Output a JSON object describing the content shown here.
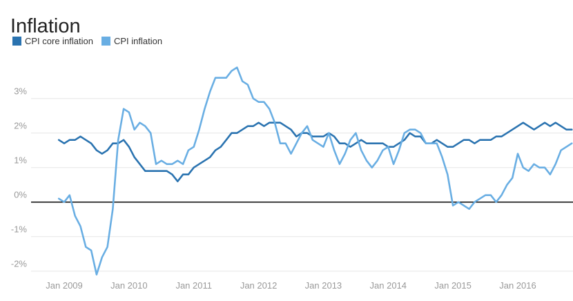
{
  "chart_data": {
    "type": "line",
    "title": "Inflation",
    "x_unit": "month",
    "x_start_month": "Dec 2008",
    "x_end_month": "Nov 2016",
    "x_tick_labels": [
      "Jan 2009",
      "Jan 2010",
      "Jan 2011",
      "Jan 2012",
      "Jan 2013",
      "Jan 2014",
      "Jan 2015",
      "Jan 2016"
    ],
    "y_ticks": [
      {
        "label": "3%",
        "value": 3
      },
      {
        "label": "2%",
        "value": 2
      },
      {
        "label": "1%",
        "value": 1
      },
      {
        "label": "0%",
        "value": 0
      },
      {
        "label": "-1%",
        "value": -1
      },
      {
        "label": "-2%",
        "value": -2
      }
    ],
    "ylim": [
      -2.25,
      3.95
    ],
    "grid": "horizontal-only",
    "gridline_color": "#e6e6e6",
    "zero_line_color": "#000000",
    "tick_label_color": "#999999",
    "legend_position": "top-left",
    "series": [
      {
        "name": "CPI core inflation",
        "color": "#2a73b0",
        "values": [
          1.8,
          1.7,
          1.8,
          1.8,
          1.9,
          1.8,
          1.7,
          1.5,
          1.4,
          1.5,
          1.7,
          1.7,
          1.8,
          1.6,
          1.3,
          1.1,
          0.9,
          0.9,
          0.9,
          0.9,
          0.9,
          0.8,
          0.6,
          0.8,
          0.8,
          1.0,
          1.1,
          1.2,
          1.3,
          1.5,
          1.6,
          1.8,
          2.0,
          2.0,
          2.1,
          2.2,
          2.2,
          2.3,
          2.2,
          2.3,
          2.3,
          2.3,
          2.2,
          2.1,
          1.9,
          2.0,
          2.0,
          1.9,
          1.9,
          1.9,
          2.0,
          1.9,
          1.7,
          1.7,
          1.6,
          1.7,
          1.8,
          1.7,
          1.7,
          1.7,
          1.7,
          1.6,
          1.6,
          1.7,
          1.8,
          2.0,
          1.9,
          1.9,
          1.7,
          1.7,
          1.8,
          1.7,
          1.6,
          1.6,
          1.7,
          1.8,
          1.8,
          1.7,
          1.8,
          1.8,
          1.8,
          1.9,
          1.9,
          2.0,
          2.1,
          2.2,
          2.3,
          2.2,
          2.1,
          2.2,
          2.3,
          2.2,
          2.3,
          2.2,
          2.1,
          2.1
        ]
      },
      {
        "name": "CPI inflation",
        "color": "#69aee3",
        "values": [
          0.1,
          0.0,
          0.2,
          -0.4,
          -0.7,
          -1.3,
          -1.4,
          -2.1,
          -1.6,
          -1.3,
          -0.2,
          1.8,
          2.7,
          2.6,
          2.1,
          2.3,
          2.2,
          2.0,
          1.1,
          1.2,
          1.1,
          1.1,
          1.2,
          1.1,
          1.5,
          1.6,
          2.1,
          2.7,
          3.2,
          3.6,
          3.6,
          3.6,
          3.8,
          3.9,
          3.5,
          3.4,
          3.0,
          2.9,
          2.9,
          2.7,
          2.3,
          1.7,
          1.7,
          1.4,
          1.7,
          2.0,
          2.2,
          1.8,
          1.7,
          1.6,
          2.0,
          1.5,
          1.1,
          1.4,
          1.8,
          2.0,
          1.5,
          1.2,
          1.0,
          1.2,
          1.5,
          1.6,
          1.1,
          1.5,
          2.0,
          2.1,
          2.1,
          2.0,
          1.7,
          1.7,
          1.7,
          1.3,
          0.8,
          -0.1,
          0.0,
          -0.1,
          -0.2,
          0.0,
          0.1,
          0.2,
          0.2,
          0.0,
          0.2,
          0.5,
          0.7,
          1.4,
          1.0,
          0.9,
          1.1,
          1.0,
          1.0,
          0.8,
          1.1,
          1.5,
          1.6,
          1.7
        ]
      }
    ]
  }
}
